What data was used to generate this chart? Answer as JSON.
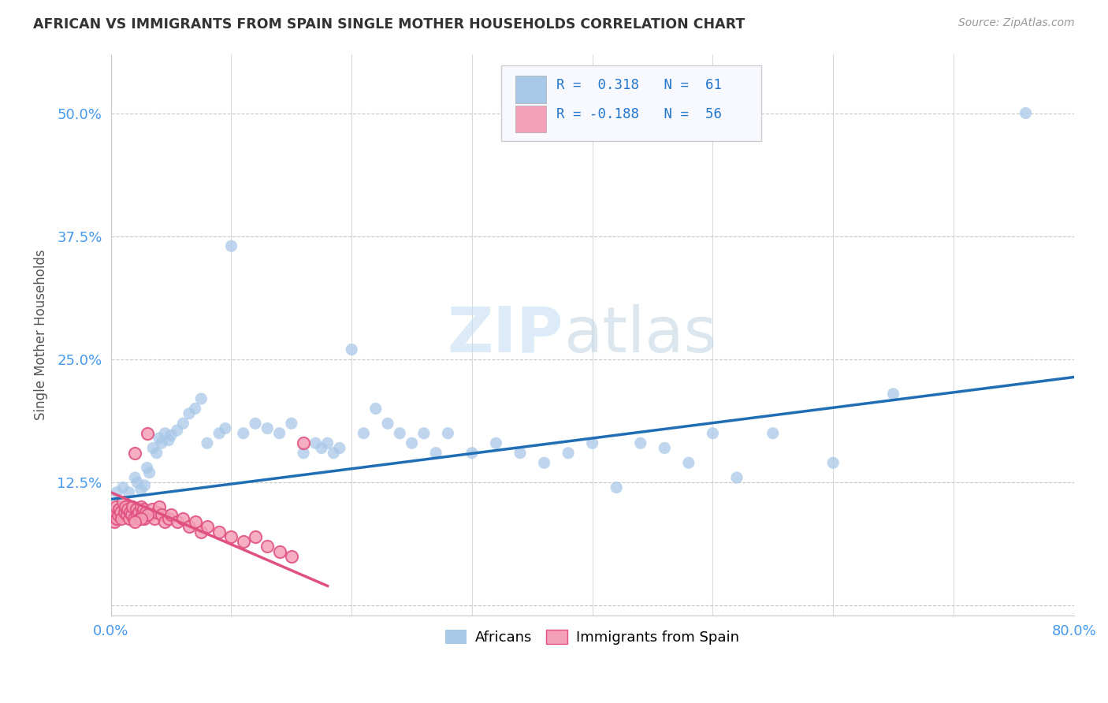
{
  "title": "AFRICAN VS IMMIGRANTS FROM SPAIN SINGLE MOTHER HOUSEHOLDS CORRELATION CHART",
  "source": "Source: ZipAtlas.com",
  "ylabel": "Single Mother Households",
  "xlim": [
    0.0,
    0.8
  ],
  "ylim": [
    -0.01,
    0.56
  ],
  "yticks": [
    0.0,
    0.125,
    0.25,
    0.375,
    0.5
  ],
  "ytick_labels": [
    "",
    "12.5%",
    "25.0%",
    "37.5%",
    "50.0%"
  ],
  "xticks": [
    0.0,
    0.1,
    0.2,
    0.3,
    0.4,
    0.5,
    0.6,
    0.7,
    0.8
  ],
  "xtick_labels": [
    "0.0%",
    "",
    "",
    "",
    "",
    "",
    "",
    "",
    "80.0%"
  ],
  "blue_color": "#a8c8e8",
  "pink_color": "#f4a0b8",
  "blue_line_color": "#1f6db5",
  "pink_line_color": "#e05080",
  "title_color": "#333333",
  "axis_label_color": "#555555",
  "tick_label_color": "#4499ee",
  "background_color": "#ffffff",
  "grid_color": "#c8c8c8",
  "watermark": "ZIPatlas",
  "blue_scatter_x": [
    0.005,
    0.01,
    0.015,
    0.02,
    0.022,
    0.025,
    0.028,
    0.03,
    0.032,
    0.035,
    0.038,
    0.04,
    0.042,
    0.045,
    0.048,
    0.05,
    0.055,
    0.06,
    0.065,
    0.07,
    0.075,
    0.08,
    0.09,
    0.095,
    0.1,
    0.11,
    0.12,
    0.13,
    0.14,
    0.15,
    0.16,
    0.17,
    0.175,
    0.18,
    0.185,
    0.19,
    0.2,
    0.21,
    0.22,
    0.23,
    0.24,
    0.25,
    0.26,
    0.27,
    0.28,
    0.3,
    0.32,
    0.34,
    0.36,
    0.38,
    0.4,
    0.42,
    0.44,
    0.46,
    0.48,
    0.5,
    0.52,
    0.55,
    0.6,
    0.65,
    0.76
  ],
  "blue_scatter_y": [
    0.115,
    0.12,
    0.115,
    0.13,
    0.125,
    0.118,
    0.122,
    0.14,
    0.135,
    0.16,
    0.155,
    0.17,
    0.165,
    0.175,
    0.168,
    0.173,
    0.178,
    0.185,
    0.195,
    0.2,
    0.21,
    0.165,
    0.175,
    0.18,
    0.365,
    0.175,
    0.185,
    0.18,
    0.175,
    0.185,
    0.155,
    0.165,
    0.16,
    0.165,
    0.155,
    0.16,
    0.26,
    0.175,
    0.2,
    0.185,
    0.175,
    0.165,
    0.175,
    0.155,
    0.175,
    0.155,
    0.165,
    0.155,
    0.145,
    0.155,
    0.165,
    0.12,
    0.165,
    0.16,
    0.145,
    0.175,
    0.13,
    0.175,
    0.145,
    0.215,
    0.5
  ],
  "pink_scatter_x": [
    0.001,
    0.002,
    0.003,
    0.004,
    0.005,
    0.006,
    0.007,
    0.008,
    0.009,
    0.01,
    0.011,
    0.012,
    0.013,
    0.014,
    0.015,
    0.016,
    0.017,
    0.018,
    0.019,
    0.02,
    0.021,
    0.022,
    0.023,
    0.024,
    0.025,
    0.026,
    0.027,
    0.028,
    0.029,
    0.03,
    0.032,
    0.034,
    0.036,
    0.038,
    0.04,
    0.042,
    0.045,
    0.048,
    0.05,
    0.055,
    0.06,
    0.065,
    0.07,
    0.075,
    0.08,
    0.09,
    0.1,
    0.11,
    0.12,
    0.13,
    0.14,
    0.15,
    0.03,
    0.025,
    0.02,
    0.16
  ],
  "pink_scatter_y": [
    0.09,
    0.095,
    0.085,
    0.1,
    0.088,
    0.092,
    0.098,
    0.095,
    0.088,
    0.105,
    0.095,
    0.1,
    0.092,
    0.098,
    0.088,
    0.095,
    0.092,
    0.1,
    0.088,
    0.155,
    0.098,
    0.092,
    0.095,
    0.088,
    0.1,
    0.092,
    0.098,
    0.088,
    0.095,
    0.175,
    0.092,
    0.098,
    0.088,
    0.095,
    0.1,
    0.092,
    0.085,
    0.088,
    0.092,
    0.085,
    0.088,
    0.08,
    0.085,
    0.075,
    0.08,
    0.075,
    0.07,
    0.065,
    0.07,
    0.06,
    0.055,
    0.05,
    0.092,
    0.088,
    0.085,
    0.165
  ],
  "blue_trend_x": [
    0.0,
    0.8
  ],
  "blue_trend_y": [
    0.108,
    0.232
  ],
  "pink_trend_x": [
    0.0,
    0.18
  ],
  "pink_trend_y": [
    0.115,
    0.02
  ]
}
